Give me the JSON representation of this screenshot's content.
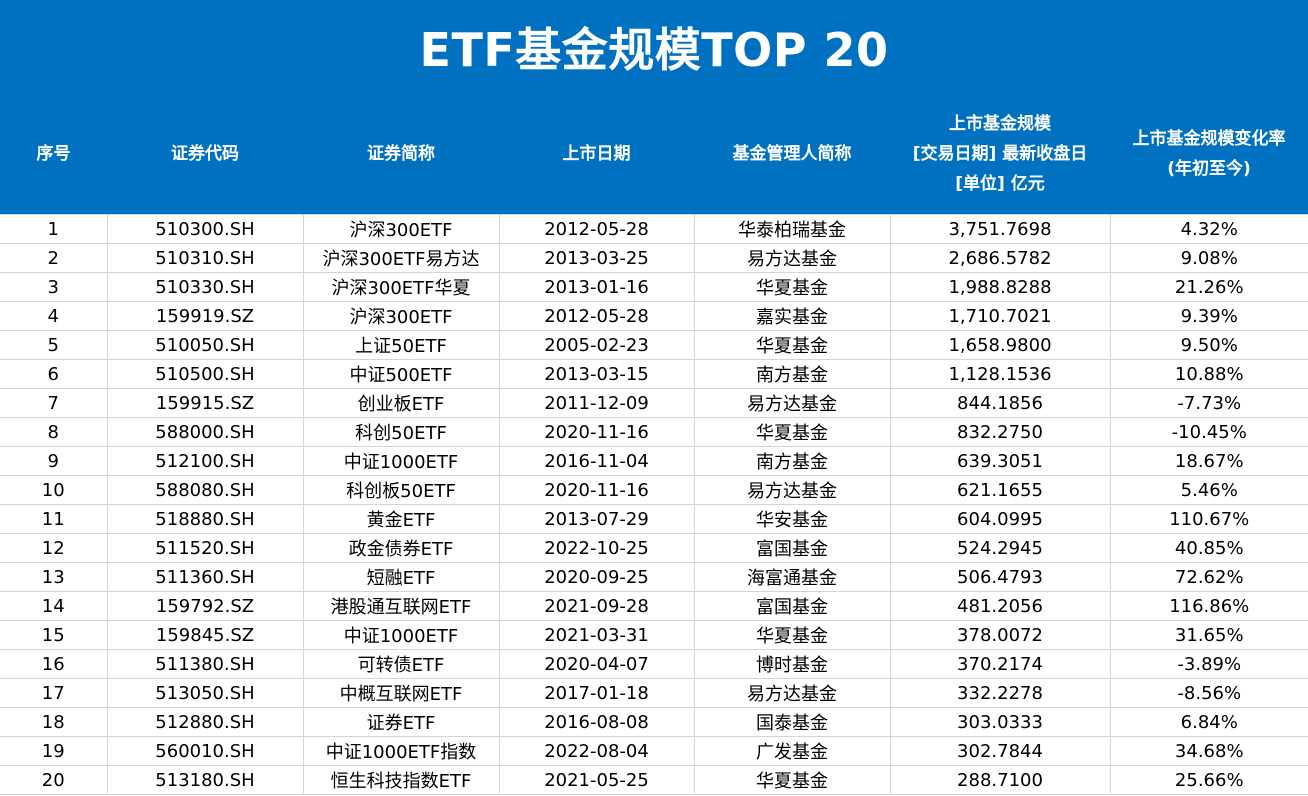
{
  "title": "ETF基金规模TOP 20",
  "headers": {
    "index": "序号",
    "code": "证券代码",
    "name": "证券简称",
    "listing_date": "上市日期",
    "manager": "基金管理人简称",
    "size": "上市基金规模\n[交易日期] 最新收盘日\n[单位] 亿元",
    "change": "上市基金规模变化率\n(年初至今)"
  },
  "rows": [
    {
      "index": "1",
      "code": "510300.SH",
      "name": "沪深300ETF",
      "listing_date": "2012-05-28",
      "manager": "华泰柏瑞基金",
      "size": "3,751.7698",
      "change": "4.32%"
    },
    {
      "index": "2",
      "code": "510310.SH",
      "name": "沪深300ETF易方达",
      "listing_date": "2013-03-25",
      "manager": "易方达基金",
      "size": "2,686.5782",
      "change": "9.08%"
    },
    {
      "index": "3",
      "code": "510330.SH",
      "name": "沪深300ETF华夏",
      "listing_date": "2013-01-16",
      "manager": "华夏基金",
      "size": "1,988.8288",
      "change": "21.26%"
    },
    {
      "index": "4",
      "code": "159919.SZ",
      "name": "沪深300ETF",
      "listing_date": "2012-05-28",
      "manager": "嘉实基金",
      "size": "1,710.7021",
      "change": "9.39%"
    },
    {
      "index": "5",
      "code": "510050.SH",
      "name": "上证50ETF",
      "listing_date": "2005-02-23",
      "manager": "华夏基金",
      "size": "1,658.9800",
      "change": "9.50%"
    },
    {
      "index": "6",
      "code": "510500.SH",
      "name": "中证500ETF",
      "listing_date": "2013-03-15",
      "manager": "南方基金",
      "size": "1,128.1536",
      "change": "10.88%"
    },
    {
      "index": "7",
      "code": "159915.SZ",
      "name": "创业板ETF",
      "listing_date": "2011-12-09",
      "manager": "易方达基金",
      "size": "844.1856",
      "change": "-7.73%"
    },
    {
      "index": "8",
      "code": "588000.SH",
      "name": "科创50ETF",
      "listing_date": "2020-11-16",
      "manager": "华夏基金",
      "size": "832.2750",
      "change": "-10.45%"
    },
    {
      "index": "9",
      "code": "512100.SH",
      "name": "中证1000ETF",
      "listing_date": "2016-11-04",
      "manager": "南方基金",
      "size": "639.3051",
      "change": "18.67%"
    },
    {
      "index": "10",
      "code": "588080.SH",
      "name": "科创板50ETF",
      "listing_date": "2020-11-16",
      "manager": "易方达基金",
      "size": "621.1655",
      "change": "5.46%"
    },
    {
      "index": "11",
      "code": "518880.SH",
      "name": "黄金ETF",
      "listing_date": "2013-07-29",
      "manager": "华安基金",
      "size": "604.0995",
      "change": "110.67%"
    },
    {
      "index": "12",
      "code": "511520.SH",
      "name": "政金债券ETF",
      "listing_date": "2022-10-25",
      "manager": "富国基金",
      "size": "524.2945",
      "change": "40.85%"
    },
    {
      "index": "13",
      "code": "511360.SH",
      "name": "短融ETF",
      "listing_date": "2020-09-25",
      "manager": "海富通基金",
      "size": "506.4793",
      "change": "72.62%"
    },
    {
      "index": "14",
      "code": "159792.SZ",
      "name": "港股通互联网ETF",
      "listing_date": "2021-09-28",
      "manager": "富国基金",
      "size": "481.2056",
      "change": "116.86%"
    },
    {
      "index": "15",
      "code": "159845.SZ",
      "name": "中证1000ETF",
      "listing_date": "2021-03-31",
      "manager": "华夏基金",
      "size": "378.0072",
      "change": "31.65%"
    },
    {
      "index": "16",
      "code": "511380.SH",
      "name": "可转债ETF",
      "listing_date": "2020-04-07",
      "manager": "博时基金",
      "size": "370.2174",
      "change": "-3.89%"
    },
    {
      "index": "17",
      "code": "513050.SH",
      "name": "中概互联网ETF",
      "listing_date": "2017-01-18",
      "manager": "易方达基金",
      "size": "332.2278",
      "change": "-8.56%"
    },
    {
      "index": "18",
      "code": "512880.SH",
      "name": "证券ETF",
      "listing_date": "2016-08-08",
      "manager": "国泰基金",
      "size": "303.0333",
      "change": "6.84%"
    },
    {
      "index": "19",
      "code": "560010.SH",
      "name": "中证1000ETF指数",
      "listing_date": "2022-08-04",
      "manager": "广发基金",
      "size": "302.7844",
      "change": "34.68%"
    },
    {
      "index": "20",
      "code": "513180.SH",
      "name": "恒生科技指数ETF",
      "listing_date": "2021-05-25",
      "manager": "华夏基金",
      "size": "288.7100",
      "change": "25.66%"
    }
  ]
}
